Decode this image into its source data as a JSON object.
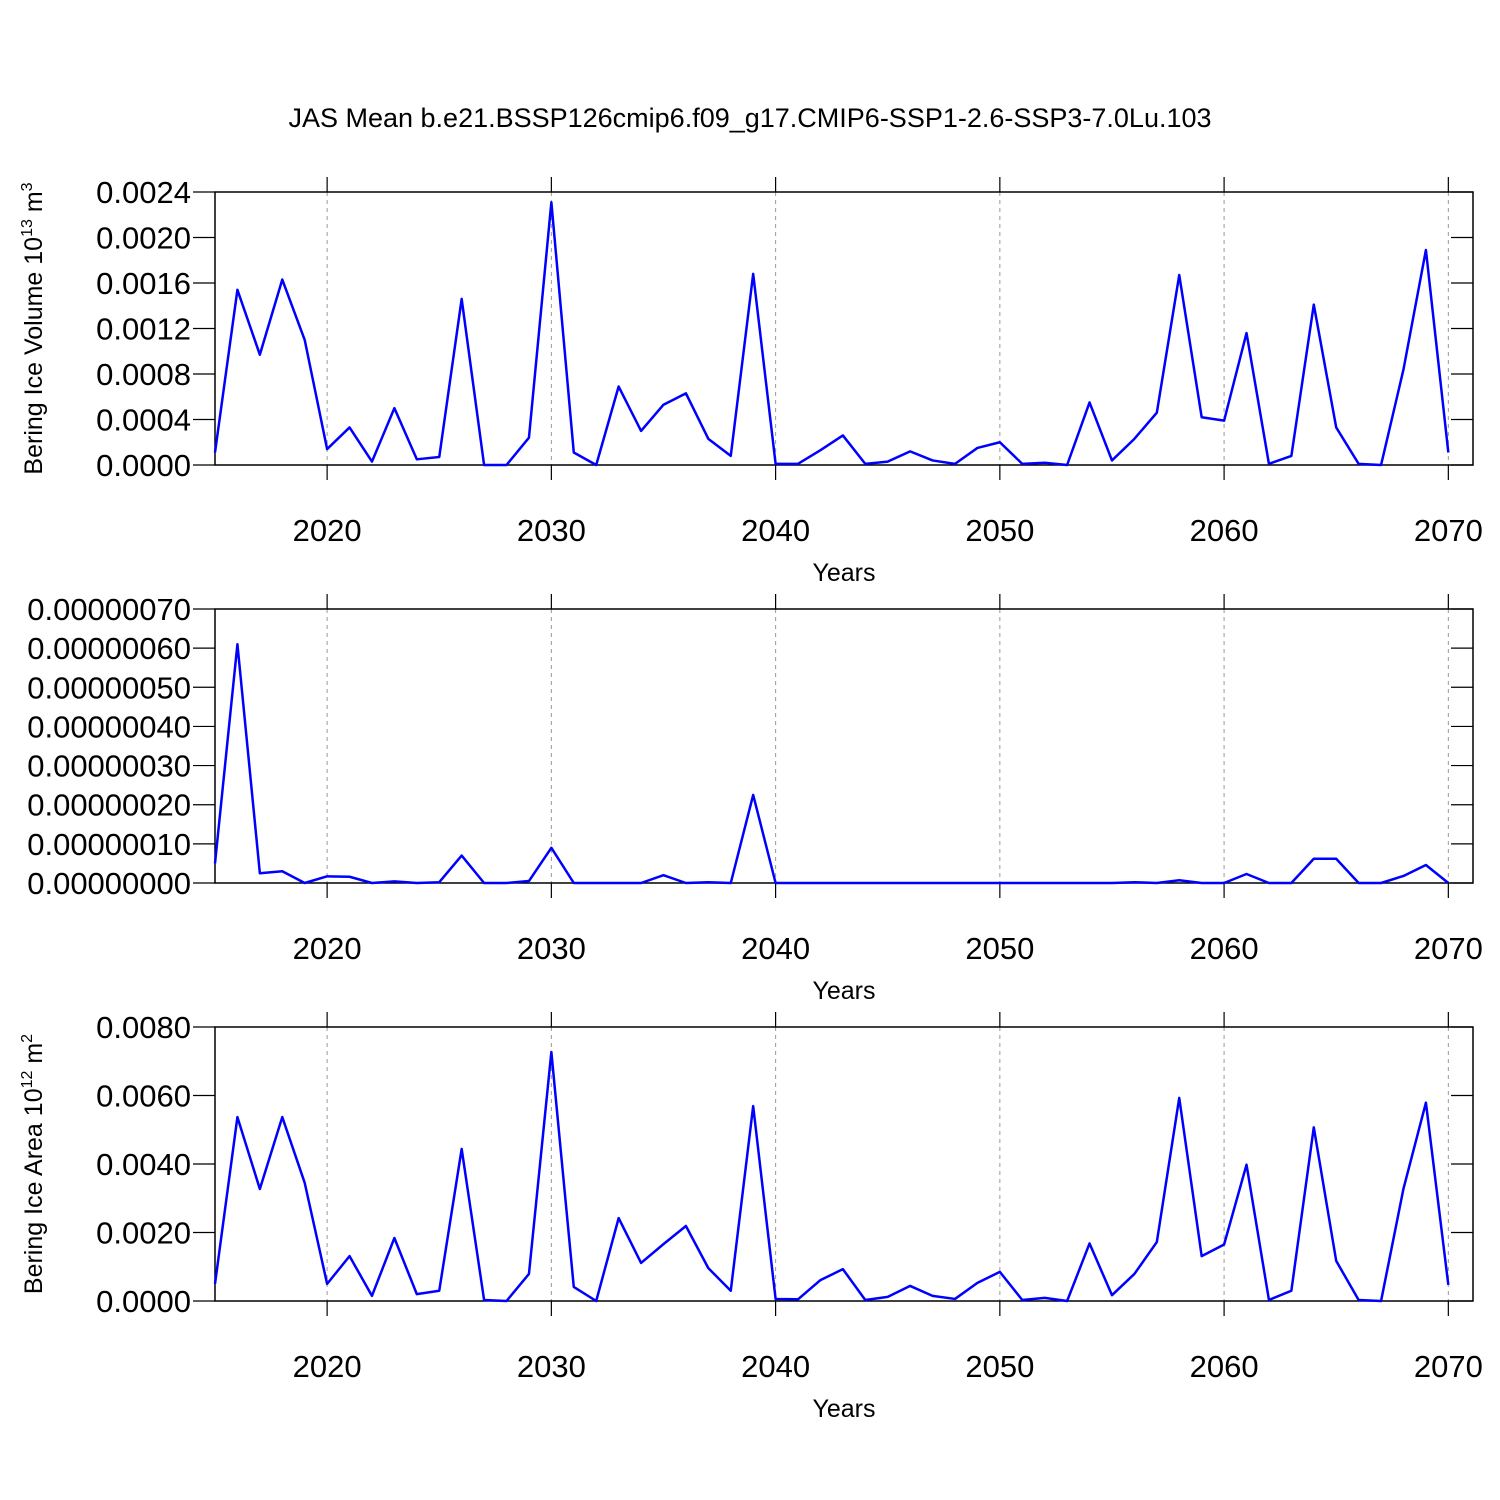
{
  "chart_data": [
    {
      "type": "line",
      "title": "JAS Mean b.e21.BSSP126cmip6.f09_g17.CMIP6-SSP1-2.6-SSP3-7.0Lu.103",
      "xlabel": "Years",
      "ylabel": {
        "text": "Bering Ice Volume 10",
        "exp": "13",
        "unit": " m",
        "unit_exp": "3"
      },
      "x": [
        2015,
        2016,
        2017,
        2018,
        2019,
        2020,
        2021,
        2022,
        2023,
        2024,
        2025,
        2026,
        2027,
        2028,
        2029,
        2030,
        2031,
        2032,
        2033,
        2034,
        2035,
        2036,
        2037,
        2038,
        2039,
        2040,
        2041,
        2042,
        2043,
        2044,
        2045,
        2046,
        2047,
        2048,
        2049,
        2050,
        2051,
        2052,
        2053,
        2054,
        2055,
        2056,
        2057,
        2058,
        2059,
        2060,
        2061,
        2062,
        2063,
        2064,
        2065,
        2066,
        2067,
        2068,
        2069,
        2070
      ],
      "values": [
        0.00011,
        0.00154,
        0.00097,
        0.00163,
        0.0011,
        0.00014,
        0.00033,
        3e-05,
        0.0005,
        5e-05,
        7e-05,
        0.00146,
        0,
        0,
        0.00024,
        0.00231,
        0.00011,
        0,
        0.00069,
        0.0003,
        0.00053,
        0.00063,
        0.00023,
        8e-05,
        0.00168,
        1e-05,
        1e-05,
        0.00013,
        0.00026,
        1e-05,
        3e-05,
        0.00012,
        4e-05,
        1e-05,
        0.00015,
        0.0002,
        1e-05,
        2e-05,
        0,
        0.00055,
        4e-05,
        0.00023,
        0.00046,
        0.00167,
        0.00042,
        0.00039,
        0.00116,
        1e-05,
        8e-05,
        0.00141,
        0.00033,
        1e-05,
        0,
        0.00084,
        0.00189,
        0.00011
      ],
      "color": "#0000ff",
      "xlim": [
        2015,
        2071.1
      ],
      "xticks": [
        2020,
        2030,
        2040,
        2050,
        2060,
        2070
      ],
      "ylim": [
        0,
        0.0024
      ],
      "yticks": [
        {
          "value": 0,
          "label": "0.0000"
        },
        {
          "value": 0.0004,
          "label": "0.0004"
        },
        {
          "value": 0.0008,
          "label": "0.0008"
        },
        {
          "value": 0.0012,
          "label": "0.0012"
        },
        {
          "value": 0.0016,
          "label": "0.0016"
        },
        {
          "value": 0.002,
          "label": "0.0020"
        },
        {
          "value": 0.0024,
          "label": "0.0024"
        }
      ],
      "grid": true
    },
    {
      "type": "line",
      "xlabel": "Years",
      "x": [
        2015,
        2016,
        2017,
        2018,
        2019,
        2020,
        2021,
        2022,
        2023,
        2024,
        2025,
        2026,
        2027,
        2028,
        2029,
        2030,
        2031,
        2032,
        2033,
        2034,
        2035,
        2036,
        2037,
        2038,
        2039,
        2040,
        2041,
        2042,
        2043,
        2044,
        2045,
        2046,
        2047,
        2048,
        2049,
        2050,
        2051,
        2052,
        2053,
        2054,
        2055,
        2056,
        2057,
        2058,
        2059,
        2060,
        2061,
        2062,
        2063,
        2064,
        2065,
        2066,
        2067,
        2068,
        2069,
        2070
      ],
      "values": [
        5e-08,
        6.1e-07,
        2.5e-08,
        3e-08,
        0,
        1.7e-08,
        1.6e-08,
        0,
        4e-09,
        0,
        2e-09,
        7e-08,
        0,
        0,
        5e-09,
        9e-08,
        0,
        0,
        0,
        0,
        2e-08,
        0,
        2e-09,
        0,
        2.25e-07,
        0,
        0,
        0,
        0,
        0,
        0,
        0,
        0,
        0,
        0,
        0,
        0,
        0,
        0,
        0,
        0,
        2e-09,
        0,
        7e-09,
        0,
        0,
        2.3e-08,
        0,
        0,
        6.2e-08,
        6.2e-08,
        0,
        0,
        1.8e-08,
        4.6e-08,
        0
      ],
      "color": "#0000ff",
      "xlim": [
        2015,
        2071.1
      ],
      "xticks": [
        2020,
        2030,
        2040,
        2050,
        2060,
        2070
      ],
      "ylim": [
        0,
        7e-07
      ],
      "yticks": [
        {
          "value": 0,
          "label": "0.00000000"
        },
        {
          "value": 1e-07,
          "label": "0.00000010"
        },
        {
          "value": 2e-07,
          "label": "0.00000020"
        },
        {
          "value": 3e-07,
          "label": "0.00000030"
        },
        {
          "value": 4e-07,
          "label": "0.00000040"
        },
        {
          "value": 5e-07,
          "label": "0.00000050"
        },
        {
          "value": 6e-07,
          "label": "0.00000060"
        },
        {
          "value": 7e-07,
          "label": "0.00000070"
        }
      ],
      "grid": true
    },
    {
      "type": "line",
      "xlabel": "Years",
      "ylabel": {
        "text": "Bering Ice Area 10",
        "exp": "12",
        "unit": " m",
        "unit_exp": "2"
      },
      "x": [
        2015,
        2016,
        2017,
        2018,
        2019,
        2020,
        2021,
        2022,
        2023,
        2024,
        2025,
        2026,
        2027,
        2028,
        2029,
        2030,
        2031,
        2032,
        2033,
        2034,
        2035,
        2036,
        2037,
        2038,
        2039,
        2040,
        2041,
        2042,
        2043,
        2044,
        2045,
        2046,
        2047,
        2048,
        2049,
        2050,
        2051,
        2052,
        2053,
        2054,
        2055,
        2056,
        2057,
        2058,
        2059,
        2060,
        2061,
        2062,
        2063,
        2064,
        2065,
        2066,
        2067,
        2068,
        2069,
        2070
      ],
      "values": [
        0.0005,
        0.00537,
        0.00327,
        0.00537,
        0.00345,
        0.0005,
        0.00131,
        0.00015,
        0.00184,
        0.0002,
        0.0003,
        0.00444,
        3e-05,
        0,
        0.00079,
        0.00727,
        0.00041,
        0,
        0.00242,
        0.00111,
        0.00166,
        0.00219,
        0.00096,
        0.0003,
        0.00569,
        6e-05,
        5e-05,
        0.00061,
        0.00093,
        3e-05,
        0.00012,
        0.00044,
        0.00015,
        6e-05,
        0.00053,
        0.00085,
        3e-05,
        9e-05,
        0,
        0.00168,
        0.00017,
        0.00079,
        0.00172,
        0.00593,
        0.00131,
        0.00165,
        0.00398,
        3e-05,
        0.0003,
        0.00507,
        0.00117,
        3e-05,
        0,
        0.00328,
        0.00579,
        0.00047
      ],
      "color": "#0000ff",
      "xlim": [
        2015,
        2071.1
      ],
      "xticks": [
        2020,
        2030,
        2040,
        2050,
        2060,
        2070
      ],
      "ylim": [
        0,
        0.008
      ],
      "yticks": [
        {
          "value": 0,
          "label": "0.0000"
        },
        {
          "value": 0.002,
          "label": "0.0020"
        },
        {
          "value": 0.004,
          "label": "0.0040"
        },
        {
          "value": 0.006,
          "label": "0.0060"
        },
        {
          "value": 0.008,
          "label": "0.0080"
        }
      ],
      "grid": true
    }
  ]
}
